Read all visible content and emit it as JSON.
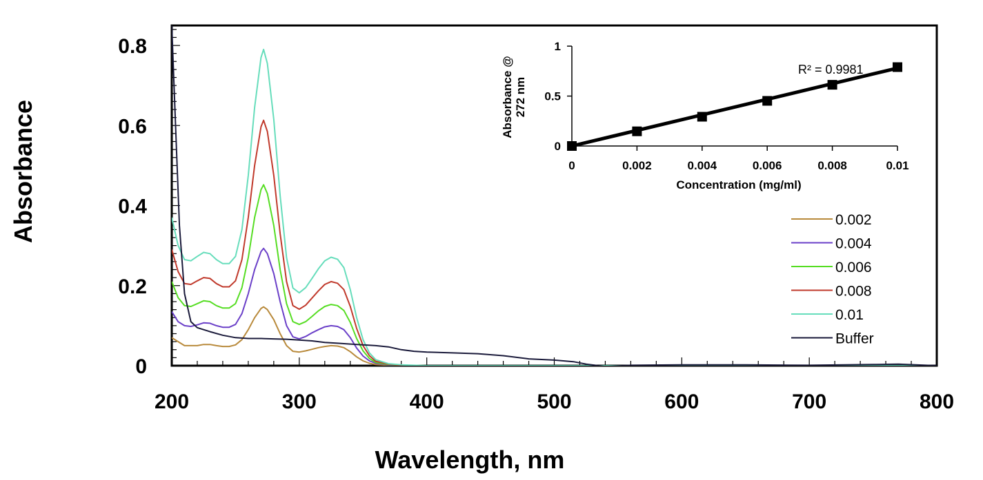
{
  "chart_data": [
    {
      "type": "line",
      "xlabel": "Wavelength, nm",
      "ylabel": "Absorbance",
      "xlim": [
        200,
        800
      ],
      "ylim": [
        0,
        0.85
      ],
      "xticks": [
        "200",
        "300",
        "400",
        "500",
        "600",
        "700",
        "800"
      ],
      "yticks": [
        "0",
        "0.2",
        "0.4",
        "0.6",
        "0.8"
      ],
      "legend_position": "right",
      "series": [
        {
          "name": "0.002",
          "color": "#b8893a",
          "points": [
            [
              200,
              0.07
            ],
            [
              205,
              0.06
            ],
            [
              210,
              0.05
            ],
            [
              215,
              0.05
            ],
            [
              220,
              0.05
            ],
            [
              225,
              0.053
            ],
            [
              230,
              0.053
            ],
            [
              235,
              0.05
            ],
            [
              240,
              0.048
            ],
            [
              245,
              0.048
            ],
            [
              250,
              0.052
            ],
            [
              255,
              0.065
            ],
            [
              260,
              0.09
            ],
            [
              265,
              0.12
            ],
            [
              270,
              0.143
            ],
            [
              272,
              0.147
            ],
            [
              275,
              0.14
            ],
            [
              280,
              0.115
            ],
            [
              285,
              0.08
            ],
            [
              290,
              0.05
            ],
            [
              295,
              0.036
            ],
            [
              300,
              0.034
            ],
            [
              305,
              0.037
            ],
            [
              310,
              0.041
            ],
            [
              315,
              0.045
            ],
            [
              320,
              0.048
            ],
            [
              325,
              0.05
            ],
            [
              330,
              0.049
            ],
            [
              335,
              0.045
            ],
            [
              340,
              0.035
            ],
            [
              345,
              0.022
            ],
            [
              350,
              0.012
            ],
            [
              355,
              0.006
            ],
            [
              360,
              0.003
            ],
            [
              370,
              0.001
            ],
            [
              380,
              0
            ],
            [
              800,
              0
            ]
          ]
        },
        {
          "name": "0.004",
          "color": "#6a3fc8",
          "points": [
            [
              200,
              0.135
            ],
            [
              205,
              0.11
            ],
            [
              210,
              0.1
            ],
            [
              215,
              0.098
            ],
            [
              220,
              0.102
            ],
            [
              225,
              0.107
            ],
            [
              230,
              0.106
            ],
            [
              235,
              0.1
            ],
            [
              240,
              0.096
            ],
            [
              245,
              0.096
            ],
            [
              250,
              0.103
            ],
            [
              255,
              0.13
            ],
            [
              260,
              0.18
            ],
            [
              265,
              0.24
            ],
            [
              270,
              0.285
            ],
            [
              272,
              0.293
            ],
            [
              275,
              0.28
            ],
            [
              280,
              0.23
            ],
            [
              285,
              0.16
            ],
            [
              290,
              0.1
            ],
            [
              295,
              0.072
            ],
            [
              300,
              0.067
            ],
            [
              305,
              0.073
            ],
            [
              310,
              0.082
            ],
            [
              315,
              0.09
            ],
            [
              320,
              0.097
            ],
            [
              325,
              0.1
            ],
            [
              330,
              0.098
            ],
            [
              335,
              0.09
            ],
            [
              340,
              0.07
            ],
            [
              345,
              0.044
            ],
            [
              350,
              0.024
            ],
            [
              355,
              0.012
            ],
            [
              360,
              0.006
            ],
            [
              370,
              0.002
            ],
            [
              380,
              0
            ],
            [
              800,
              0
            ]
          ]
        },
        {
          "name": "0.006",
          "color": "#55dd22",
          "points": [
            [
              200,
              0.21
            ],
            [
              205,
              0.17
            ],
            [
              210,
              0.15
            ],
            [
              215,
              0.148
            ],
            [
              220,
              0.155
            ],
            [
              225,
              0.162
            ],
            [
              230,
              0.16
            ],
            [
              235,
              0.15
            ],
            [
              240,
              0.144
            ],
            [
              245,
              0.144
            ],
            [
              250,
              0.155
            ],
            [
              255,
              0.195
            ],
            [
              260,
              0.27
            ],
            [
              265,
              0.37
            ],
            [
              270,
              0.44
            ],
            [
              272,
              0.452
            ],
            [
              275,
              0.43
            ],
            [
              280,
              0.35
            ],
            [
              285,
              0.24
            ],
            [
              290,
              0.155
            ],
            [
              295,
              0.11
            ],
            [
              300,
              0.103
            ],
            [
              305,
              0.11
            ],
            [
              310,
              0.123
            ],
            [
              315,
              0.137
            ],
            [
              320,
              0.148
            ],
            [
              325,
              0.153
            ],
            [
              330,
              0.15
            ],
            [
              335,
              0.138
            ],
            [
              340,
              0.108
            ],
            [
              345,
              0.068
            ],
            [
              350,
              0.037
            ],
            [
              355,
              0.018
            ],
            [
              360,
              0.008
            ],
            [
              370,
              0.003
            ],
            [
              380,
              0.001
            ],
            [
              400,
              0
            ],
            [
              800,
              0
            ]
          ]
        },
        {
          "name": "0.008",
          "color": "#c0392b",
          "points": [
            [
              200,
              0.29
            ],
            [
              205,
              0.235
            ],
            [
              210,
              0.205
            ],
            [
              215,
              0.203
            ],
            [
              220,
              0.212
            ],
            [
              225,
              0.22
            ],
            [
              230,
              0.218
            ],
            [
              235,
              0.205
            ],
            [
              240,
              0.197
            ],
            [
              245,
              0.197
            ],
            [
              250,
              0.212
            ],
            [
              255,
              0.265
            ],
            [
              260,
              0.37
            ],
            [
              265,
              0.5
            ],
            [
              270,
              0.597
            ],
            [
              272,
              0.613
            ],
            [
              275,
              0.585
            ],
            [
              280,
              0.475
            ],
            [
              285,
              0.33
            ],
            [
              290,
              0.21
            ],
            [
              295,
              0.15
            ],
            [
              300,
              0.141
            ],
            [
              305,
              0.151
            ],
            [
              310,
              0.169
            ],
            [
              315,
              0.187
            ],
            [
              320,
              0.203
            ],
            [
              325,
              0.21
            ],
            [
              330,
              0.206
            ],
            [
              335,
              0.19
            ],
            [
              340,
              0.148
            ],
            [
              345,
              0.093
            ],
            [
              350,
              0.05
            ],
            [
              355,
              0.025
            ],
            [
              360,
              0.011
            ],
            [
              370,
              0.004
            ],
            [
              380,
              0.001
            ],
            [
              400,
              0
            ],
            [
              800,
              0
            ]
          ]
        },
        {
          "name": "0.01",
          "color": "#66ddbb",
          "points": [
            [
              200,
              0.37
            ],
            [
              205,
              0.3
            ],
            [
              210,
              0.265
            ],
            [
              215,
              0.262
            ],
            [
              220,
              0.273
            ],
            [
              225,
              0.283
            ],
            [
              230,
              0.28
            ],
            [
              235,
              0.265
            ],
            [
              240,
              0.255
            ],
            [
              245,
              0.255
            ],
            [
              250,
              0.273
            ],
            [
              255,
              0.34
            ],
            [
              260,
              0.475
            ],
            [
              265,
              0.645
            ],
            [
              270,
              0.77
            ],
            [
              272,
              0.79
            ],
            [
              275,
              0.755
            ],
            [
              280,
              0.615
            ],
            [
              285,
              0.425
            ],
            [
              290,
              0.27
            ],
            [
              295,
              0.194
            ],
            [
              300,
              0.182
            ],
            [
              305,
              0.195
            ],
            [
              310,
              0.218
            ],
            [
              315,
              0.242
            ],
            [
              320,
              0.262
            ],
            [
              325,
              0.271
            ],
            [
              330,
              0.266
            ],
            [
              335,
              0.245
            ],
            [
              340,
              0.19
            ],
            [
              345,
              0.12
            ],
            [
              350,
              0.065
            ],
            [
              355,
              0.032
            ],
            [
              360,
              0.015
            ],
            [
              370,
              0.005
            ],
            [
              380,
              0.002
            ],
            [
              400,
              0
            ],
            [
              800,
              0
            ]
          ]
        },
        {
          "name": "Buffer",
          "color": "#1a1a3a",
          "points": [
            [
              200,
              0.85
            ],
            [
              203,
              0.6
            ],
            [
              206,
              0.35
            ],
            [
              210,
              0.18
            ],
            [
              215,
              0.11
            ],
            [
              220,
              0.095
            ],
            [
              230,
              0.085
            ],
            [
              240,
              0.076
            ],
            [
              250,
              0.07
            ],
            [
              260,
              0.068
            ],
            [
              270,
              0.068
            ],
            [
              280,
              0.067
            ],
            [
              290,
              0.066
            ],
            [
              300,
              0.064
            ],
            [
              310,
              0.062
            ],
            [
              320,
              0.058
            ],
            [
              330,
              0.056
            ],
            [
              340,
              0.054
            ],
            [
              350,
              0.052
            ],
            [
              360,
              0.05
            ],
            [
              370,
              0.047
            ],
            [
              380,
              0.04
            ],
            [
              390,
              0.036
            ],
            [
              400,
              0.034
            ],
            [
              420,
              0.032
            ],
            [
              440,
              0.03
            ],
            [
              460,
              0.025
            ],
            [
              480,
              0.017
            ],
            [
              500,
              0.014
            ],
            [
              515,
              0.01
            ],
            [
              525,
              0.004
            ],
            [
              540,
              -0.002
            ],
            [
              560,
              0.001
            ],
            [
              600,
              0.002
            ],
            [
              650,
              0.002
            ],
            [
              700,
              0.001
            ],
            [
              750,
              0.003
            ],
            [
              770,
              0.004
            ],
            [
              800,
              0
            ]
          ]
        }
      ]
    },
    {
      "type": "scatter",
      "xlabel": "Concentration (mg/ml)",
      "ylabel_lines": [
        "Absorbance @",
        "272 nm"
      ],
      "xlim": [
        0,
        0.01
      ],
      "ylim": [
        0,
        1
      ],
      "xticks": [
        "0",
        "0.002",
        "0.004",
        "0.006",
        "0.008",
        "0.01"
      ],
      "yticks": [
        "0",
        "0.5",
        "1"
      ],
      "annotation": "R² = 0.9981",
      "marker_color": "#000000",
      "points": [
        [
          0,
          0
        ],
        [
          0.002,
          0.147
        ],
        [
          0.004,
          0.293
        ],
        [
          0.006,
          0.452
        ],
        [
          0.008,
          0.613
        ],
        [
          0.01,
          0.79
        ]
      ],
      "trendline": [
        [
          0,
          0
        ],
        [
          0.01,
          0.78
        ]
      ]
    }
  ]
}
